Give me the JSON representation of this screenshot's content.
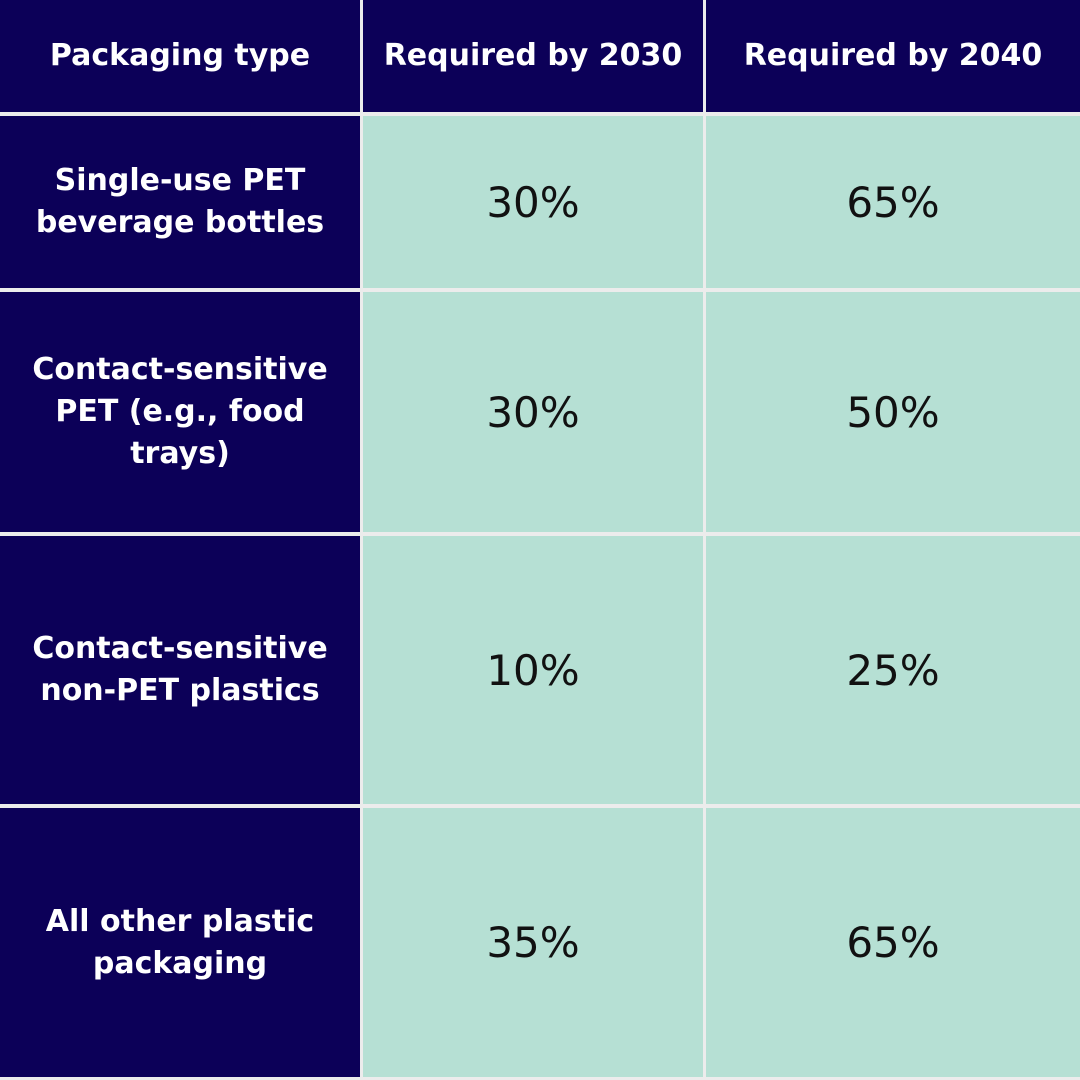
{
  "chart_data": {
    "type": "table",
    "columns": [
      "Packaging type",
      "Required by 2030",
      "Required by 2040"
    ],
    "rows": [
      {
        "label": "Single-use PET beverage bottles",
        "y2030": "30%",
        "y2040": "65%"
      },
      {
        "label": "Contact-sensitive PET (e.g., food trays)",
        "y2030": "30%",
        "y2040": "50%"
      },
      {
        "label": "Contact-sensitive non-PET plastics",
        "y2030": "10%",
        "y2040": "25%"
      },
      {
        "label": "All other plastic packaging",
        "y2030": "35%",
        "y2040": "65%"
      }
    ]
  },
  "colors": {
    "header_background": "#0c0058",
    "value_background": "#b6e0d4",
    "gridline": "#ececec"
  }
}
